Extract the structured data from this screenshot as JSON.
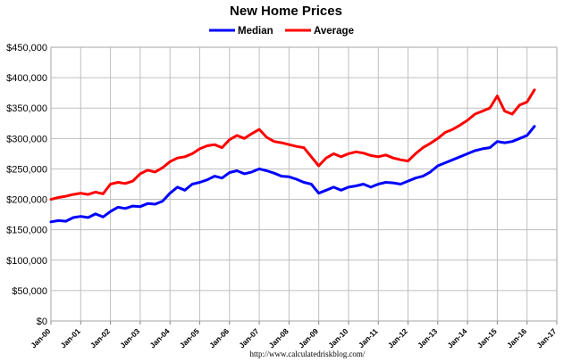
{
  "chart_data": {
    "type": "line",
    "title": "New Home Prices",
    "source": "http://www.calculatedriskblog.com/",
    "legend_position": "top-center",
    "grid": true,
    "ylim": [
      0,
      450000
    ],
    "yticks": [
      0,
      50000,
      100000,
      150000,
      200000,
      250000,
      300000,
      350000,
      400000,
      450000
    ],
    "ytick_labels": [
      "$0",
      "$50,000",
      "$100,000",
      "$150,000",
      "$200,000",
      "$250,000",
      "$300,000",
      "$350,000",
      "$400,000",
      "$450,000"
    ],
    "xlim": [
      2000.0,
      2017.0
    ],
    "xtick_labels": [
      "Jan-00",
      "Jan-01",
      "Jan-02",
      "Jan-03",
      "Jan-04",
      "Jan-05",
      "Jan-06",
      "Jan-07",
      "Jan-08",
      "Jan-09",
      "Jan-10",
      "Jan-11",
      "Jan-12",
      "Jan-13",
      "Jan-14",
      "Jan-15",
      "Jan-16",
      "Jan-17"
    ],
    "series": [
      {
        "name": "Median",
        "color": "#0000ff",
        "x": [
          2000.0,
          2000.25,
          2000.5,
          2000.75,
          2001.0,
          2001.25,
          2001.5,
          2001.75,
          2002.0,
          2002.25,
          2002.5,
          2002.75,
          2003.0,
          2003.25,
          2003.5,
          2003.75,
          2004.0,
          2004.25,
          2004.5,
          2004.75,
          2005.0,
          2005.25,
          2005.5,
          2005.75,
          2006.0,
          2006.25,
          2006.5,
          2006.75,
          2007.0,
          2007.25,
          2007.5,
          2007.75,
          2008.0,
          2008.25,
          2008.5,
          2008.75,
          2009.0,
          2009.25,
          2009.5,
          2009.75,
          2010.0,
          2010.25,
          2010.5,
          2010.75,
          2011.0,
          2011.25,
          2011.5,
          2011.75,
          2012.0,
          2012.25,
          2012.5,
          2012.75,
          2013.0,
          2013.25,
          2013.5,
          2013.75,
          2014.0,
          2014.25,
          2014.5,
          2014.75,
          2015.0,
          2015.25,
          2015.5,
          2015.75,
          2016.0,
          2016.25
        ],
        "values": [
          163000,
          165000,
          164000,
          170000,
          172000,
          170000,
          176000,
          171000,
          180000,
          187000,
          185000,
          189000,
          188000,
          193000,
          192000,
          197000,
          210000,
          220000,
          215000,
          225000,
          228000,
          232000,
          238000,
          235000,
          244000,
          247000,
          242000,
          245000,
          250000,
          247000,
          243000,
          238000,
          237000,
          233000,
          228000,
          225000,
          210000,
          215000,
          220000,
          215000,
          220000,
          222000,
          225000,
          220000,
          225000,
          228000,
          227000,
          225000,
          230000,
          235000,
          238000,
          245000,
          255000,
          260000,
          265000,
          270000,
          275000,
          280000,
          283000,
          285000,
          295000,
          293000,
          295000,
          300000,
          305000,
          320000
        ]
      },
      {
        "name": "Average",
        "color": "#ff0000",
        "x": [
          2000.0,
          2000.25,
          2000.5,
          2000.75,
          2001.0,
          2001.25,
          2001.5,
          2001.75,
          2002.0,
          2002.25,
          2002.5,
          2002.75,
          2003.0,
          2003.25,
          2003.5,
          2003.75,
          2004.0,
          2004.25,
          2004.5,
          2004.75,
          2005.0,
          2005.25,
          2005.5,
          2005.75,
          2006.0,
          2006.25,
          2006.5,
          2006.75,
          2007.0,
          2007.25,
          2007.5,
          2007.75,
          2008.0,
          2008.25,
          2008.5,
          2008.75,
          2009.0,
          2009.25,
          2009.5,
          2009.75,
          2010.0,
          2010.25,
          2010.5,
          2010.75,
          2011.0,
          2011.25,
          2011.5,
          2011.75,
          2012.0,
          2012.25,
          2012.5,
          2012.75,
          2013.0,
          2013.25,
          2013.5,
          2013.75,
          2014.0,
          2014.25,
          2014.5,
          2014.75,
          2015.0,
          2015.25,
          2015.5,
          2015.75,
          2016.0,
          2016.25
        ],
        "values": [
          200000,
          203000,
          205000,
          208000,
          210000,
          208000,
          212000,
          209000,
          225000,
          228000,
          226000,
          230000,
          242000,
          248000,
          245000,
          252000,
          262000,
          268000,
          270000,
          275000,
          283000,
          288000,
          290000,
          285000,
          298000,
          305000,
          300000,
          308000,
          315000,
          302000,
          295000,
          293000,
          290000,
          287000,
          285000,
          270000,
          255000,
          268000,
          275000,
          270000,
          275000,
          278000,
          276000,
          272000,
          270000,
          273000,
          268000,
          265000,
          263000,
          275000,
          285000,
          292000,
          300000,
          310000,
          315000,
          322000,
          330000,
          340000,
          345000,
          350000,
          370000,
          345000,
          340000,
          355000,
          360000,
          380000
        ]
      }
    ]
  }
}
